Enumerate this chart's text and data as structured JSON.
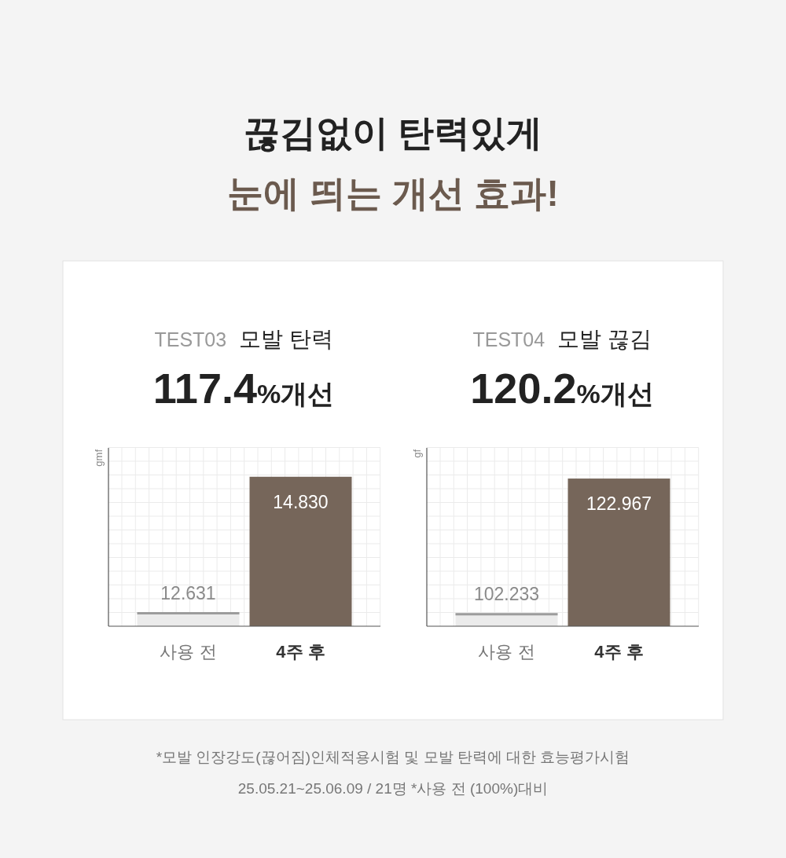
{
  "chart_data": [
    {
      "type": "other",
      "title": "끊김없이 탄력있게",
      "subtitle": "눈에 띄는 개선 효과!",
      "annotations": [
        "*모발 인장강도(끊어짐)인체적용시험 및 모발 탄력에 대한 효능평가시험",
        "25.05.21~25.06.09 / 21명 *사용 전 (100%)대비"
      ]
    },
    {
      "type": "bar",
      "title": "TEST03 모발 탄력",
      "subtitle": "117.4%개선",
      "ylabel": "gmf",
      "categories": [
        "사용 전",
        "4주 후"
      ],
      "values": [
        12.631,
        14.83
      ],
      "value_labels": [
        "12.631",
        "14.830"
      ],
      "colors": [
        "#ebebeb",
        "#76665a"
      ],
      "ylim": [
        12.4,
        15.3
      ],
      "grid": true
    },
    {
      "type": "bar",
      "title": "TEST04 모발 끊김",
      "subtitle": "120.2%개선",
      "ylabel": "gf",
      "categories": [
        "사용 전",
        "4주 후"
      ],
      "values": [
        102.233,
        122.967
      ],
      "value_labels": [
        "102.233",
        "122.967"
      ],
      "colors": [
        "#ebebeb",
        "#76665a"
      ],
      "ylim": [
        100.2,
        127.7
      ],
      "grid": true
    }
  ]
}
